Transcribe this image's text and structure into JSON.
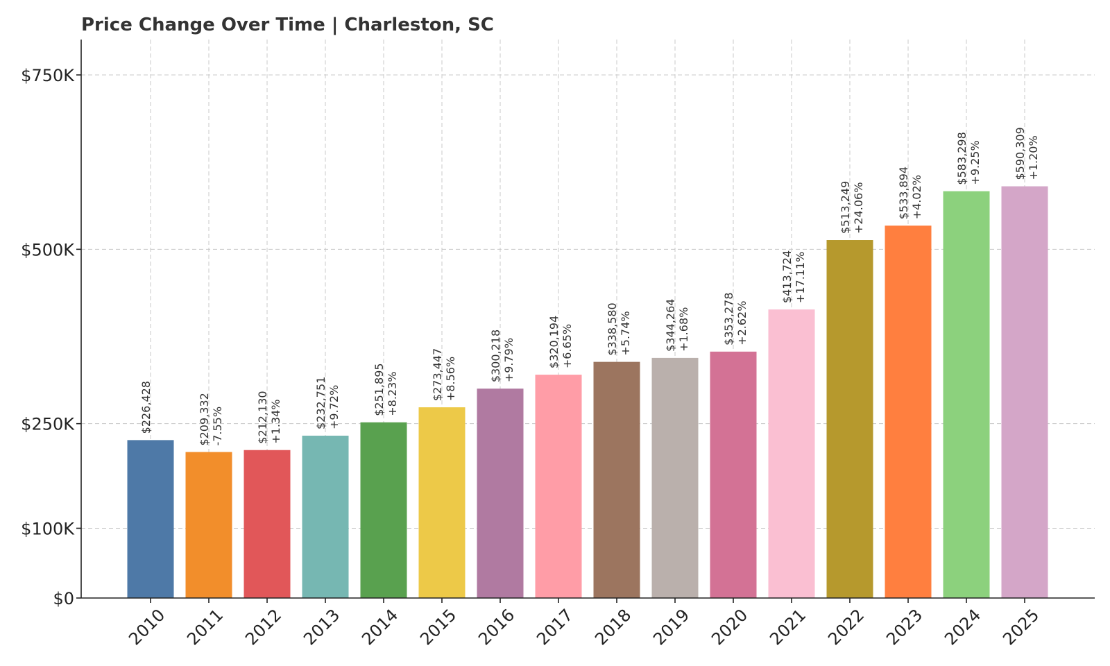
{
  "chart_data": {
    "type": "bar",
    "title": "Price Change Over Time | Charleston, SC",
    "xlabel": "",
    "ylabel": "",
    "categories": [
      "2010",
      "2011",
      "2012",
      "2013",
      "2014",
      "2015",
      "2016",
      "2017",
      "2018",
      "2019",
      "2020",
      "2021",
      "2022",
      "2023",
      "2024",
      "2025"
    ],
    "values": [
      226428,
      209332,
      212130,
      232751,
      251895,
      273447,
      300218,
      320194,
      338580,
      344264,
      353278,
      413724,
      513249,
      533894,
      583298,
      590309
    ],
    "value_labels": [
      "$226,428",
      "$209,332",
      "$212,130",
      "$232,751",
      "$251,895",
      "$273,447",
      "$300,218",
      "$320,194",
      "$338,580",
      "$344,264",
      "$353,278",
      "$413,724",
      "$513,249",
      "$533,894",
      "$583,298",
      "$590,309"
    ],
    "change_labels": [
      "",
      "-7.55%",
      "+1.34%",
      "+9.72%",
      "+8.23%",
      "+8.56%",
      "+9.79%",
      "+6.65%",
      "+5.74%",
      "+1.68%",
      "+2.62%",
      "+17.11%",
      "+24.06%",
      "+4.02%",
      "+9.25%",
      "+1.20%"
    ],
    "colors": [
      "#4e79a7",
      "#f28e2b",
      "#e15759",
      "#76b7b2",
      "#59a14f",
      "#edc948",
      "#b07aa1",
      "#ff9da7",
      "#9c755f",
      "#bab0ac",
      "#d37295",
      "#fabfd2",
      "#b6992d",
      "#ff7f3f",
      "#8cd17d",
      "#d4a6c8"
    ],
    "yticks": [
      0,
      100000,
      250000,
      500000,
      750000
    ],
    "ytick_labels": [
      "$0",
      "$100K",
      "$250K",
      "$500K",
      "$750K"
    ],
    "ylim": [
      0,
      800000
    ],
    "grid": true,
    "legend": "none"
  }
}
